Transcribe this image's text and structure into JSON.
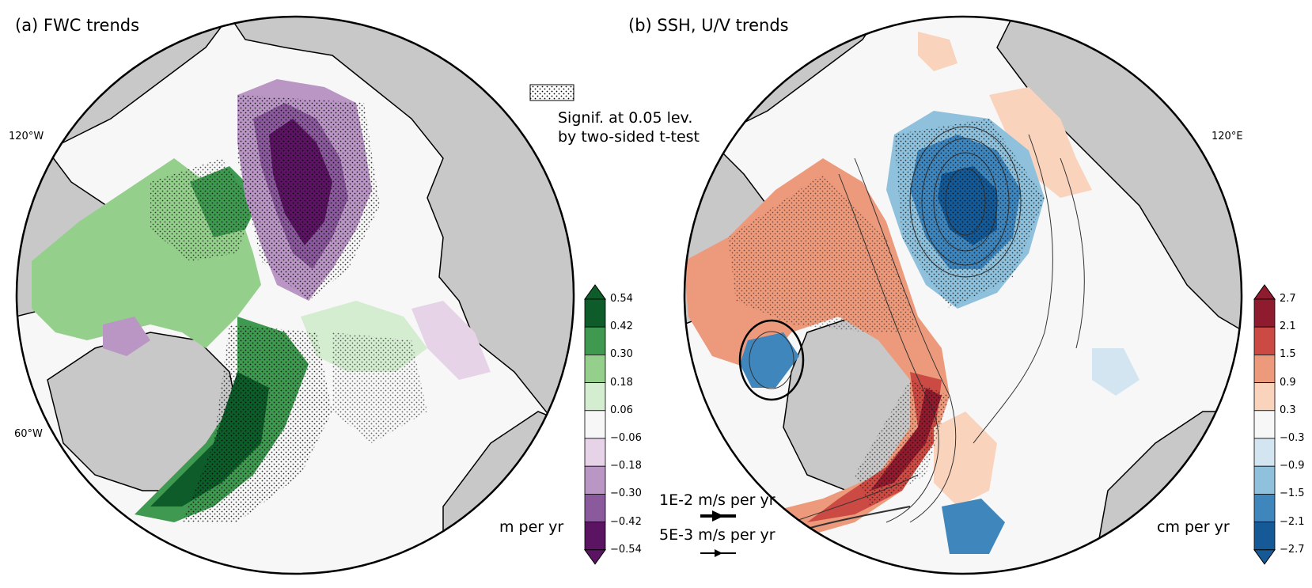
{
  "panel_a": {
    "title": "(a) FWC trends",
    "lon_label_top": "120°W",
    "lon_label_bottom": "60°W",
    "unit": "m per yr",
    "colorbar": {
      "ticks": [
        "0.54",
        "0.42",
        "0.30",
        "0.18",
        "0.06",
        "−0.06",
        "−0.18",
        "−0.30",
        "−0.42",
        "−0.54"
      ],
      "colors": [
        "#0d5c2a",
        "#3f9950",
        "#94cf8c",
        "#d4ecd0",
        "#f7f7f7",
        "#e6d3e8",
        "#b996c4",
        "#8a5a9c",
        "#5b1462"
      ],
      "extend_top": "#0d5c2a",
      "extend_bottom": "#5b1462"
    }
  },
  "panel_b": {
    "title": "(b) SSH, U/V trends",
    "lon_label_right": "120°E",
    "unit": "cm per yr",
    "colorbar": {
      "ticks": [
        "2.7",
        "2.1",
        "1.5",
        "0.9",
        "0.3",
        "−0.3",
        "−0.9",
        "−1.5",
        "−2.1",
        "−2.7"
      ],
      "colors": [
        "#8f1b2e",
        "#cb4b44",
        "#ed9a7c",
        "#fad3bd",
        "#f7f7f7",
        "#d2e5f0",
        "#8fc1dc",
        "#3f86bd",
        "#155a96"
      ],
      "extend_top": "#8f1b2e",
      "extend_bottom": "#155a96"
    }
  },
  "significance_legend": {
    "line1": "Signif. at 0.05 lev.",
    "line2": "by two-sided t-test"
  },
  "vector_keys": {
    "key1": "1E-2 m/s per yr",
    "key2": "5E-3 m/s per yr"
  },
  "colors": {
    "land": "#c8c8c8",
    "ocean": "#f7f7f7",
    "coast": "#000000"
  }
}
